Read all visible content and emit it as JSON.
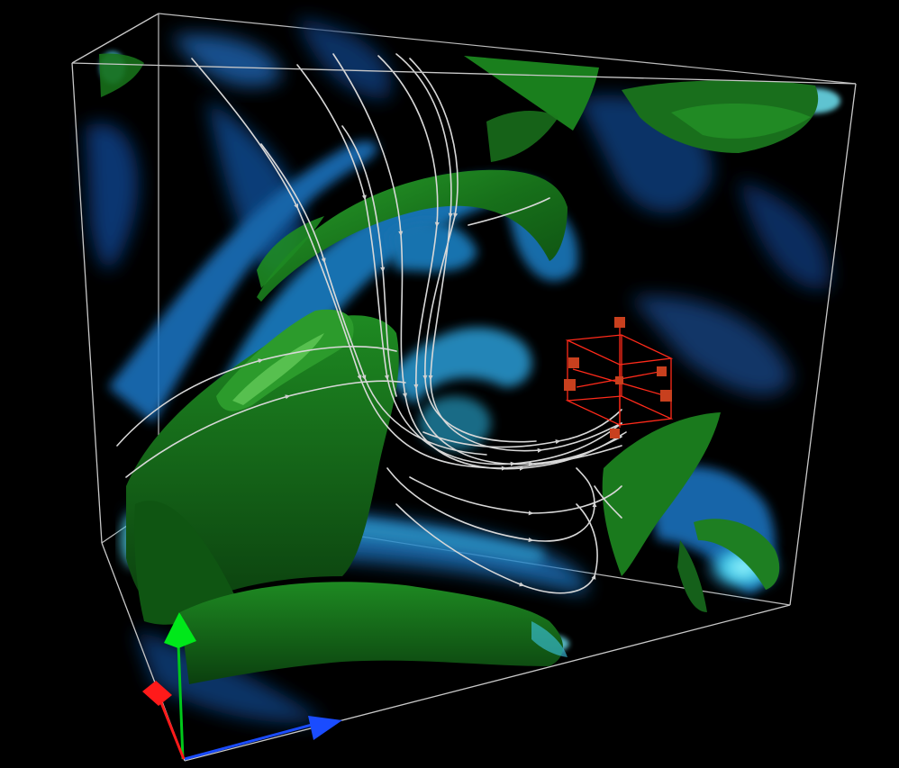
{
  "view": {
    "background": "#000000",
    "bbox_color": "#c8c8c8",
    "volume_colors": [
      "#0a3f7a",
      "#1d7fd1",
      "#3cc6e6",
      "#7ff3ff"
    ],
    "isosurface_color": "#1b7f1f",
    "isosurface_highlight": "#5fd45a",
    "streamline_color": "#dcdcdc",
    "seed_widget_color": "#ff2a1a",
    "seed_handle_color": "#c8401e"
  },
  "axes": {
    "x": {
      "color": "#1a4cff",
      "icon": "arrow-cone"
    },
    "y": {
      "color": "#00e81a",
      "icon": "arrow-cone"
    },
    "z": {
      "color": "#ff1a1a",
      "icon": "arrow-cone"
    }
  },
  "widgets": {
    "seed_box": {
      "icon": "box-widget",
      "handles": 7
    }
  }
}
